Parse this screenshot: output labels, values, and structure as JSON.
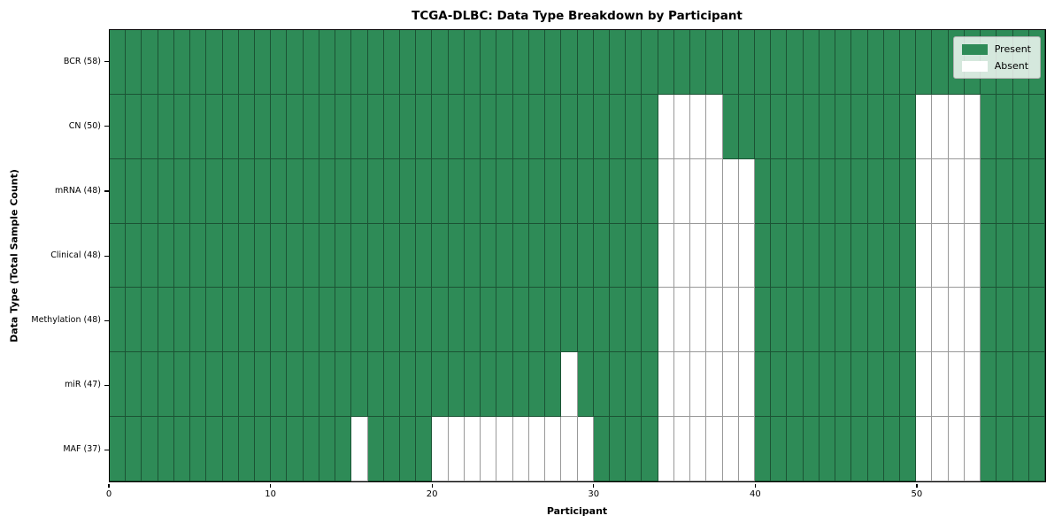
{
  "chart_data": {
    "type": "heatmap",
    "title": "TCGA-DLBC: Data Type Breakdown by Participant",
    "xlabel": "Participant",
    "ylabel": "Data Type (Total Sample Count)",
    "n_participants": 58,
    "x_axis_range": [
      0,
      58
    ],
    "x_ticks": [
      0,
      10,
      20,
      30,
      40,
      50
    ],
    "grid_lines": true,
    "legend_position": "upper right",
    "rows": [
      {
        "label": "BCR (58)",
        "total_samples": 58,
        "absent_participants": []
      },
      {
        "label": "CN (50)",
        "total_samples": 50,
        "absent_participants": [
          34,
          35,
          36,
          37,
          50,
          51,
          52,
          53
        ]
      },
      {
        "label": "mRNA (48)",
        "total_samples": 48,
        "absent_participants": [
          34,
          35,
          36,
          37,
          38,
          39,
          50,
          51,
          52,
          53
        ]
      },
      {
        "label": "Clinical (48)",
        "total_samples": 48,
        "absent_participants": [
          34,
          35,
          36,
          37,
          38,
          39,
          50,
          51,
          52,
          53
        ]
      },
      {
        "label": "Methylation (48)",
        "total_samples": 48,
        "absent_participants": [
          34,
          35,
          36,
          37,
          38,
          39,
          50,
          51,
          52,
          53
        ]
      },
      {
        "label": "miR (47)",
        "total_samples": 47,
        "absent_participants": [
          28,
          34,
          35,
          36,
          37,
          38,
          39,
          50,
          51,
          52,
          53
        ]
      },
      {
        "label": "MAF (37)",
        "total_samples": 37,
        "absent_participants": [
          15,
          20,
          21,
          22,
          23,
          24,
          25,
          26,
          27,
          28,
          29,
          34,
          35,
          36,
          37,
          38,
          39,
          50,
          51,
          52,
          53
        ]
      }
    ],
    "legend": [
      {
        "label": "Present",
        "color": "#2e8b57"
      },
      {
        "label": "Absent",
        "color": "#ffffff"
      }
    ],
    "colors": {
      "present": "#2e8b57",
      "absent": "#ffffff",
      "gridline": "rgba(0,0,0,0.40)",
      "plot_border": "#000000"
    }
  }
}
